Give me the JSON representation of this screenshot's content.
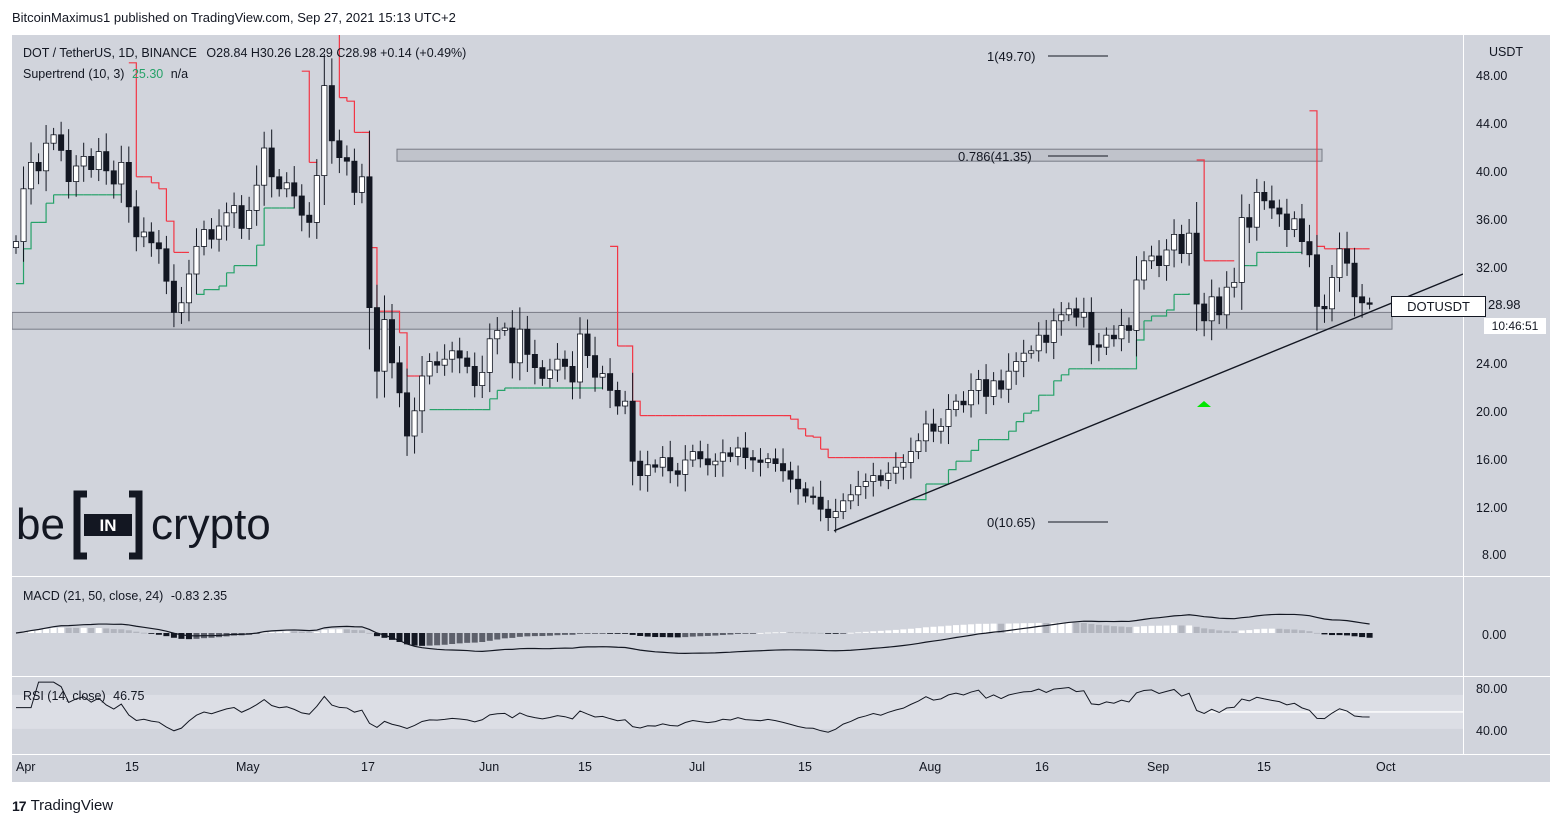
{
  "header": {
    "text": "BitcoinMaximus1 published on TradingView.com, Sep 27, 2021 15:13 UTC+2"
  },
  "main_legend": {
    "symbol": "DOT / TetherUS, 1D, BINANCE",
    "ohlc": "O28.84  H30.26  L28.29  C28.98  +0.14 (+0.49%)",
    "indicator": "Supertrend (10, 3)",
    "indicator_value": "25.30",
    "indicator_extra": "n/a"
  },
  "macd_legend": {
    "label": "MACD (21, 50, close, 24)",
    "values": "-0.83  2.35"
  },
  "rsi_legend": {
    "label": "RSI (14, close)",
    "value": "46.75"
  },
  "price_axis": {
    "currency": "USDT",
    "ticks": [
      "48.00",
      "44.00",
      "40.00",
      "36.00",
      "32.00",
      "28.00",
      "24.00",
      "20.00",
      "16.00",
      "12.00",
      "8.00"
    ]
  },
  "macd_axis": {
    "ticks": [
      "0.00"
    ]
  },
  "rsi_axis": {
    "ticks": [
      "80.00",
      "40.00"
    ]
  },
  "time_axis": {
    "ticks": [
      "Apr",
      "15",
      "May",
      "17",
      "Jun",
      "15",
      "Jul",
      "15",
      "Aug",
      "16",
      "Sep",
      "15",
      "Oct"
    ]
  },
  "price_tag": {
    "symbol": "DOTUSDT",
    "value": "28.98",
    "countdown": "10:46:51"
  },
  "fib_levels": [
    "1(49.70)",
    "0.786(41.35)",
    "0(10.65)"
  ],
  "branding": {
    "left": "be",
    "mark": "IN",
    "right": "crypto"
  },
  "footer": {
    "logo": "17",
    "label": "TradingView"
  },
  "colors": {
    "up": "#ffffff",
    "down": "#131722",
    "supertrend_down": "#f23645",
    "supertrend_up": "#26a269",
    "signal_arrow": "#00e600"
  },
  "chart_data": {
    "type": "candlestick",
    "title": "DOT / TetherUS, 1D, BINANCE",
    "ylabel": "USDT",
    "ylim": [
      6.2,
      51.6
    ],
    "x_ticks": [
      "Apr",
      "15",
      "May",
      "17",
      "Jun",
      "15",
      "Jul",
      "15",
      "Aug",
      "16",
      "Sep",
      "15",
      "Oct"
    ],
    "closes": [
      34.2,
      38.6,
      40.8,
      40.1,
      42.4,
      43.1,
      41.8,
      39.2,
      40.5,
      41.3,
      40.2,
      41.7,
      40.1,
      39.0,
      40.8,
      37.1,
      34.6,
      35.0,
      34.1,
      33.6,
      30.9,
      28.3,
      29.1,
      31.5,
      33.8,
      35.2,
      34.4,
      35.5,
      36.6,
      37.2,
      35.3,
      36.8,
      38.9,
      42.0,
      39.6,
      38.6,
      39.1,
      38.0,
      36.4,
      35.8,
      39.7,
      47.2,
      42.6,
      41.2,
      40.9,
      38.3,
      39.6,
      28.7,
      23.4,
      27.7,
      24.1,
      21.6,
      18.0,
      20.1,
      23.0,
      24.2,
      23.9,
      24.4,
      25.1,
      24.5,
      23.8,
      22.2,
      23.3,
      26.1,
      26.8,
      27.0,
      24.1,
      26.9,
      24.8,
      23.7,
      22.8,
      23.5,
      24.4,
      23.8,
      22.5,
      26.5,
      24.7,
      22.9,
      23.2,
      21.8,
      20.5,
      20.9,
      15.9,
      14.7,
      15.6,
      15.4,
      16.2,
      15.1,
      14.8,
      16.0,
      16.7,
      16.1,
      15.6,
      15.9,
      16.6,
      16.3,
      17.0,
      16.2,
      16.0,
      15.8,
      16.1,
      15.7,
      15.1,
      14.4,
      13.6,
      13.0,
      12.9,
      11.9,
      11.2,
      11.7,
      12.6,
      13.1,
      13.8,
      14.2,
      14.7,
      14.3,
      14.9,
      15.4,
      15.8,
      16.7,
      17.6,
      19.0,
      18.4,
      18.8,
      20.2,
      20.9,
      20.6,
      21.8,
      22.7,
      21.3,
      22.6,
      21.9,
      23.4,
      24.2,
      24.9,
      25.1,
      26.4,
      25.8,
      27.6,
      28.1,
      28.6,
      27.9,
      28.3,
      25.6,
      25.4,
      26.4,
      26.1,
      27.2,
      26.8,
      31.0,
      32.6,
      33.0,
      32.2,
      33.5,
      34.8,
      33.2,
      34.9,
      29.0,
      27.6,
      29.6,
      28.1,
      30.4,
      30.8,
      36.2,
      35.4,
      38.3,
      37.6,
      37.0,
      36.5,
      35.2,
      36.1,
      34.2,
      33.1,
      28.8,
      28.6,
      31.2,
      33.6,
      32.4,
      29.6,
      29.1,
      28.98
    ]
  }
}
